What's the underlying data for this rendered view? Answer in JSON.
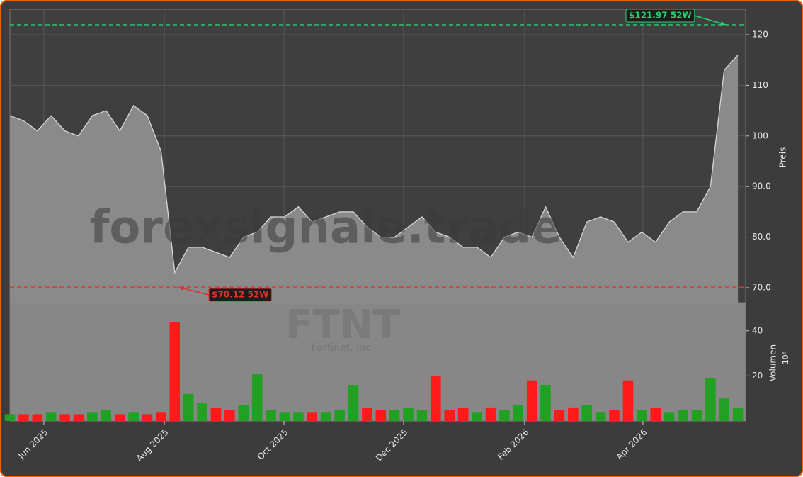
{
  "chart_data": {
    "type": "area",
    "watermark": "forexsignale.trade",
    "symbol": "FTNT",
    "company": "Fortinet, Inc.",
    "ylabel": "Preis",
    "grid": true,
    "line_color": "#d8d8d8",
    "fill_color": "#8a8a8a",
    "up_color": "#22a022",
    "down_color": "#ff1a1a",
    "xlim": [
      0,
      53.56
    ],
    "xticks": [
      {
        "value": 2.47,
        "label": "Jun 2025"
      },
      {
        "value": 11.24,
        "label": "Aug 2025"
      },
      {
        "value": 19.95,
        "label": "Oct 2025"
      },
      {
        "value": 28.66,
        "label": "Dec 2025"
      },
      {
        "value": 37.47,
        "label": "Feb 2026"
      },
      {
        "value": 46.08,
        "label": "Apr 2026"
      }
    ],
    "ylim": [
      67.06,
      125.04
    ],
    "yticks": [
      {
        "value": 70,
        "label": "70.0"
      },
      {
        "value": 80,
        "label": "80.0"
      },
      {
        "value": 90,
        "label": "90.0"
      },
      100,
      110,
      120
    ],
    "values": [
      104,
      103,
      101,
      104,
      101,
      100,
      104,
      105,
      101,
      106,
      104,
      97,
      73,
      78,
      78,
      77,
      76,
      80,
      81,
      84,
      84,
      86,
      83,
      84,
      85,
      85,
      82,
      80,
      80,
      82,
      84,
      81,
      80,
      78,
      78,
      76,
      80,
      81,
      80,
      86,
      80,
      76,
      83,
      84,
      83,
      79,
      81,
      79,
      83,
      85,
      85,
      90,
      113,
      116
    ],
    "high": {
      "value": 121.97,
      "label": "$121.97 52W",
      "color": "#2ecc71"
    },
    "low": {
      "value": 70.12,
      "label": "$70.12 52W",
      "color": "#e03030"
    },
    "volume": {
      "type": "bar",
      "ylabel": "Volumen",
      "offset": "10⁶",
      "ylim": [
        0,
        52.5
      ],
      "yticks": [
        20,
        40
      ],
      "values": [
        3,
        3,
        3,
        4,
        3,
        3,
        4,
        5,
        3,
        4,
        3,
        4,
        44,
        12,
        8,
        6,
        5,
        7,
        21,
        5,
        4,
        4,
        4,
        4,
        5,
        16,
        6,
        5,
        5,
        6,
        5,
        20,
        5,
        6,
        4,
        6,
        5,
        7,
        18,
        16,
        5,
        6,
        7,
        4,
        5,
        18,
        5,
        6,
        4,
        5,
        5,
        19,
        10,
        6
      ]
    }
  }
}
